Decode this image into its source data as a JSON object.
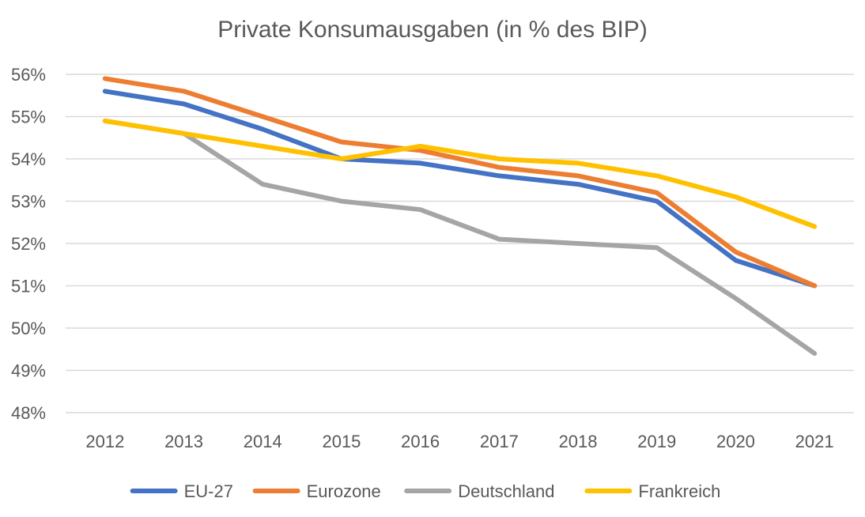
{
  "chart_data": {
    "type": "line",
    "title": "Private Konsumausgaben (in % des BIP)",
    "xlabel": "",
    "ylabel": "",
    "categories": [
      "2012",
      "2013",
      "2014",
      "2015",
      "2016",
      "2017",
      "2018",
      "2019",
      "2020",
      "2021"
    ],
    "ylim": [
      48,
      56
    ],
    "yticks": [
      56,
      55,
      54,
      53,
      52,
      51,
      50,
      49,
      48
    ],
    "ytick_labels": [
      "56%",
      "55%",
      "54%",
      "53%",
      "52%",
      "51%",
      "50%",
      "49%",
      "48%"
    ],
    "grid": "horizontal",
    "legend": "bottom",
    "series": [
      {
        "name": "EU-27",
        "color": "#4472c4",
        "values": [
          55.6,
          55.3,
          54.7,
          54.0,
          53.9,
          53.6,
          53.4,
          53.0,
          51.6,
          51.0
        ]
      },
      {
        "name": "Eurozone",
        "color": "#ed7d31",
        "values": [
          55.9,
          55.6,
          55.0,
          54.4,
          54.2,
          53.8,
          53.6,
          53.2,
          51.8,
          51.0
        ]
      },
      {
        "name": "Deutschland",
        "color": "#a5a5a5",
        "values": [
          54.9,
          54.6,
          53.4,
          53.0,
          52.8,
          52.1,
          52.0,
          51.9,
          50.7,
          49.4
        ]
      },
      {
        "name": "Frankreich",
        "color": "#ffc000",
        "values": [
          54.9,
          54.6,
          54.3,
          54.0,
          54.3,
          54.0,
          53.9,
          53.6,
          53.1,
          52.4
        ]
      }
    ]
  }
}
